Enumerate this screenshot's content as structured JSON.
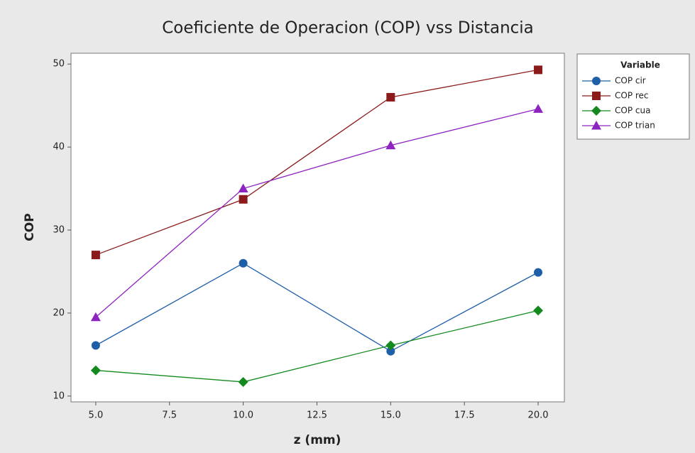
{
  "chart_data": {
    "type": "line",
    "title": "Coeficiente de Operacion (COP) vss Distancia",
    "x_label": "z (mm)",
    "y_label": "COP",
    "legend_title": "Variable",
    "legend": "outside-right",
    "x": [
      5,
      10,
      15,
      20
    ],
    "series": [
      {
        "name": "COP cir",
        "color": "#1f5fa8",
        "marker": "circle",
        "values": [
          16.1,
          26.0,
          15.4,
          24.9
        ]
      },
      {
        "name": "COP rec",
        "color": "#8b1a1a",
        "marker": "square",
        "values": [
          27.0,
          33.7,
          46.0,
          49.3
        ]
      },
      {
        "name": "COP cua",
        "color": "#13891f",
        "marker": "diamond",
        "values": [
          13.1,
          11.7,
          16.1,
          20.3
        ]
      },
      {
        "name": "COP trian",
        "color": "#8e24c0",
        "marker": "triangle",
        "values": [
          19.5,
          35.0,
          40.2,
          44.6
        ]
      }
    ],
    "xlim": [
      4.16,
      20.89
    ],
    "xticks": [
      {
        "value": 5,
        "label": "5.0"
      },
      7.5,
      {
        "value": 10,
        "label": "10.0"
      },
      12.5,
      {
        "value": 15,
        "label": "15.0"
      },
      17.5,
      {
        "value": 20,
        "label": "20.0"
      }
    ],
    "ylim": [
      9.3,
      51.3
    ],
    "yticks": [
      10,
      20,
      30,
      40,
      50
    ],
    "grid": false
  }
}
